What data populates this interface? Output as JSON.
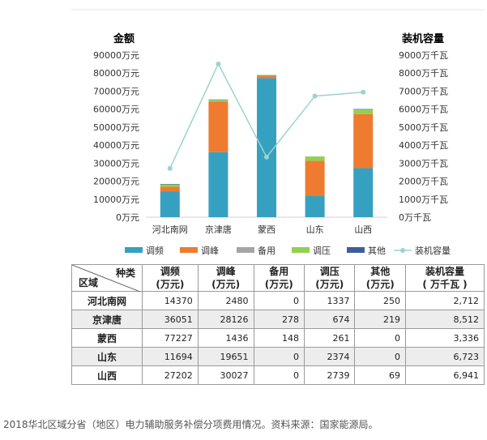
{
  "chart_data": {
    "type": "bar",
    "stacked": true,
    "left_axis_title": "金额",
    "right_axis_title": "装机容量",
    "left_ticks": [
      "90000万元",
      "80000万元",
      "70000万元",
      "60000万元",
      "50000万元",
      "40000万元",
      "30000万元",
      "20000万元",
      "10000万元",
      "0万元"
    ],
    "right_ticks": [
      "9000万千瓦",
      "8000万千瓦",
      "7000万千瓦",
      "6000万千瓦",
      "5000万千瓦",
      "4000万千瓦",
      "3000万千瓦",
      "2000万千瓦",
      "1000万千瓦",
      "0万千瓦"
    ],
    "ylim": [
      0,
      90000
    ],
    "y2lim": [
      0,
      9000
    ],
    "categories": [
      "河北南网",
      "京津唐",
      "蒙西",
      "山东",
      "山西"
    ],
    "series": [
      {
        "name": "调频",
        "color": "#36a0c0",
        "values": [
          14370,
          36051,
          77227,
          11694,
          27202
        ]
      },
      {
        "name": "调峰",
        "color": "#ee7b30",
        "values": [
          2480,
          28126,
          1436,
          19651,
          30027
        ]
      },
      {
        "name": "备用",
        "color": "#a5a5a5",
        "values": [
          0,
          278,
          148,
          0,
          0
        ]
      },
      {
        "name": "调压",
        "color": "#92d050",
        "values": [
          1337,
          674,
          261,
          2374,
          2739
        ]
      },
      {
        "name": "其他",
        "color": "#3e5f9a",
        "values": [
          250,
          219,
          0,
          0,
          69
        ]
      }
    ],
    "line_series": {
      "name": "装机容量",
      "color": "#9bd3cf",
      "axis": "right",
      "values": [
        2712,
        8512,
        3336,
        6723,
        6941
      ]
    }
  },
  "table": {
    "corner_top": "种类",
    "corner_bottom": "区域",
    "headers": [
      {
        "l1": "调频",
        "l2": "(万元)"
      },
      {
        "l1": "调峰",
        "l2": "(万元)"
      },
      {
        "l1": "备用",
        "l2": "(万元)"
      },
      {
        "l1": "调压",
        "l2": "(万元)"
      },
      {
        "l1": "其他",
        "l2": "(万元)"
      },
      {
        "l1": "装机容量",
        "l2": "( 万千瓦 )"
      }
    ],
    "rows": [
      {
        "region": "河北南网",
        "cells": [
          "14370",
          "2480",
          "0",
          "1337",
          "250",
          "2,712"
        ]
      },
      {
        "region": "京津唐",
        "cells": [
          "36051",
          "28126",
          "278",
          "674",
          "219",
          "8,512"
        ]
      },
      {
        "region": "蒙西",
        "cells": [
          "77227",
          "1436",
          "148",
          "261",
          "0",
          "3,336"
        ]
      },
      {
        "region": "山东",
        "cells": [
          "11694",
          "19651",
          "0",
          "2374",
          "0",
          "6,723"
        ]
      },
      {
        "region": "山西",
        "cells": [
          "27202",
          "30027",
          "0",
          "2739",
          "69",
          "6,941"
        ]
      }
    ]
  },
  "caption": "2018华北区域分省（地区）电力辅助服务补偿分项费用情况。资料来源：国家能源局。"
}
